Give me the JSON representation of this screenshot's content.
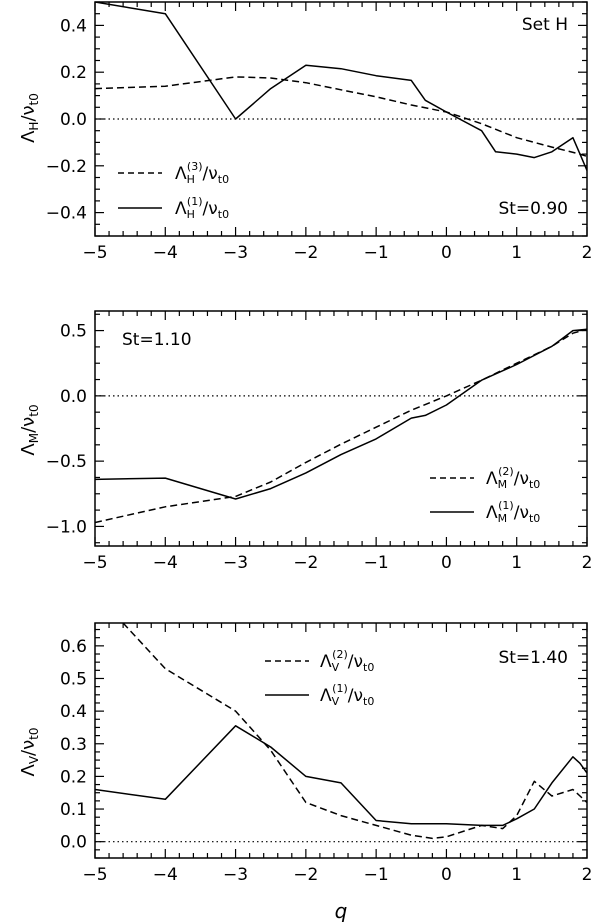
{
  "figure": {
    "xlabel": "q"
  },
  "chart_data": [
    {
      "type": "line",
      "ylabel": "Λ_H/ν_t0",
      "xlim": [
        -5,
        2
      ],
      "ylim": [
        -0.5,
        0.5
      ],
      "xticks": [
        -5,
        -4,
        -3,
        -2,
        -1,
        0,
        1,
        2
      ],
      "yticks": [
        -0.4,
        -0.2,
        0.0,
        0.2,
        0.4
      ],
      "xtick_labels": [
        "−5",
        "−4",
        "−3",
        "−2",
        "−1",
        "0",
        "1",
        "2"
      ],
      "ytick_labels": [
        "−0.4",
        "−0.2",
        "0.0",
        "0.2",
        "0.4"
      ],
      "annotation_top": "Set H",
      "annotation_bottom": "St=0.90",
      "legend_position": "bottom-left",
      "series": [
        {
          "name": "Λ_H^(3)/ν_t0",
          "style": "dashed",
          "x": [
            -5,
            -4,
            -3.5,
            -3,
            -2.5,
            -2,
            -1.5,
            -1,
            -0.5,
            0,
            0.5,
            1,
            1.5,
            1.9,
            2
          ],
          "y": [
            0.13,
            0.14,
            0.16,
            0.18,
            0.175,
            0.155,
            0.125,
            0.095,
            0.06,
            0.03,
            -0.02,
            -0.08,
            -0.12,
            -0.15,
            -0.16
          ]
        },
        {
          "name": "Λ_H^(1)/ν_t0",
          "style": "solid",
          "x": [
            -5,
            -4,
            -3,
            -2.5,
            -2,
            -1.5,
            -1,
            -0.5,
            -0.3,
            0,
            0.5,
            0.7,
            1,
            1.25,
            1.5,
            1.8,
            1.9,
            2
          ],
          "y": [
            0.5,
            0.45,
            0.0,
            0.13,
            0.23,
            0.215,
            0.185,
            0.165,
            0.08,
            0.03,
            -0.05,
            -0.14,
            -0.15,
            -0.165,
            -0.14,
            -0.08,
            -0.15,
            -0.22
          ]
        }
      ]
    },
    {
      "type": "line",
      "ylabel": "Λ_M/ν_t0",
      "xlim": [
        -5,
        2
      ],
      "ylim": [
        -1.15,
        0.65
      ],
      "xticks": [
        -5,
        -4,
        -3,
        -2,
        -1,
        0,
        1,
        2
      ],
      "yticks": [
        -1.0,
        -0.5,
        0.0,
        0.5
      ],
      "xtick_labels": [
        "−5",
        "−4",
        "−3",
        "−2",
        "−1",
        "0",
        "1",
        "2"
      ],
      "ytick_labels": [
        "−1.0",
        "−0.5",
        "0.0",
        "0.5"
      ],
      "annotation_top": "St=1.10",
      "legend_position": "bottom-right",
      "series": [
        {
          "name": "Λ_M^(2)/ν_t0",
          "style": "dashed",
          "x": [
            -5,
            -4,
            -3,
            -2.5,
            -2,
            -1.5,
            -1,
            -0.5,
            0,
            0.5,
            1,
            1.5,
            1.8,
            2
          ],
          "y": [
            -0.97,
            -0.85,
            -0.77,
            -0.66,
            -0.51,
            -0.37,
            -0.24,
            -0.11,
            0.0,
            0.12,
            0.25,
            0.38,
            0.48,
            0.51
          ]
        },
        {
          "name": "Λ_M^(1)/ν_t0",
          "style": "solid",
          "x": [
            -5,
            -4,
            -3,
            -2.5,
            -2,
            -1.5,
            -1,
            -0.5,
            -0.3,
            0,
            0.5,
            1,
            1.5,
            1.8,
            2
          ],
          "y": [
            -0.64,
            -0.63,
            -0.79,
            -0.71,
            -0.59,
            -0.45,
            -0.33,
            -0.17,
            -0.15,
            -0.07,
            0.12,
            0.24,
            0.38,
            0.5,
            0.51
          ]
        }
      ]
    },
    {
      "type": "line",
      "ylabel": "Λ_V/ν_t0",
      "xlim": [
        -5,
        2
      ],
      "ylim": [
        -0.05,
        0.67
      ],
      "xticks": [
        -5,
        -4,
        -3,
        -2,
        -1,
        0,
        1,
        2
      ],
      "yticks": [
        0.0,
        0.1,
        0.2,
        0.3,
        0.4,
        0.5,
        0.6
      ],
      "xtick_labels": [
        "−5",
        "−4",
        "−3",
        "−2",
        "−1",
        "0",
        "1",
        "2"
      ],
      "ytick_labels": [
        "0.0",
        "0.1",
        "0.2",
        "0.3",
        "0.4",
        "0.5",
        "0.6"
      ],
      "annotation_top": "St=1.40",
      "legend_position": "top-center",
      "series": [
        {
          "name": "Λ_V^(2)/ν_t0",
          "style": "dashed",
          "x": [
            -4.6,
            -4,
            -3,
            -2.5,
            -2,
            -1.5,
            -1,
            -0.5,
            -0.2,
            0,
            0.5,
            0.8,
            1,
            1.25,
            1.5,
            1.8,
            1.9,
            2
          ],
          "y": [
            0.67,
            0.53,
            0.4,
            0.28,
            0.12,
            0.08,
            0.05,
            0.02,
            0.01,
            0.015,
            0.05,
            0.04,
            0.08,
            0.185,
            0.14,
            0.16,
            0.14,
            0.12
          ]
        },
        {
          "name": "Λ_V^(1)/ν_t0",
          "style": "solid",
          "x": [
            -5,
            -4,
            -3,
            -2.5,
            -2,
            -1.5,
            -1,
            -0.5,
            0,
            0.5,
            0.8,
            1,
            1.25,
            1.5,
            1.8,
            1.9,
            2
          ],
          "y": [
            0.16,
            0.13,
            0.355,
            0.29,
            0.2,
            0.18,
            0.065,
            0.055,
            0.055,
            0.05,
            0.05,
            0.07,
            0.1,
            0.18,
            0.26,
            0.24,
            0.21
          ]
        }
      ]
    }
  ]
}
